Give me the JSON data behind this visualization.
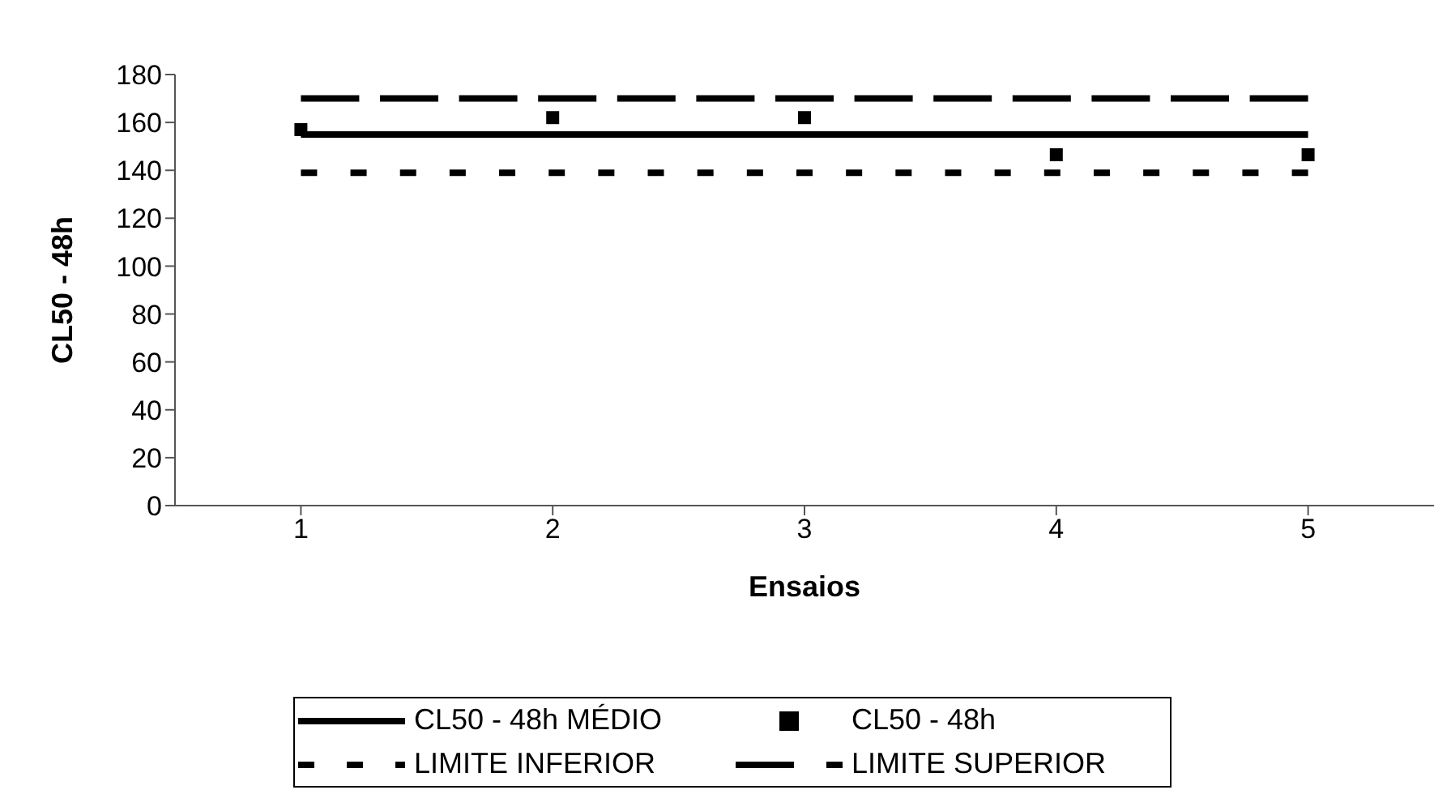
{
  "chart_data": {
    "type": "line",
    "xlabel": "Ensaios",
    "ylabel": "CL50 - 48h",
    "categories": [
      "1",
      "2",
      "3",
      "4",
      "5"
    ],
    "series": [
      {
        "name": "CL50 - 48h MÉDIO",
        "color": "#000000",
        "line_style": "solid",
        "values": [
          155,
          155,
          155,
          155,
          155
        ]
      },
      {
        "name": "CL50 - 48h",
        "type": "scatter",
        "color": "#000000",
        "marker": "square",
        "values": [
          157,
          162,
          162,
          146.5,
          146.5
        ]
      },
      {
        "name": "LIMITE INFERIOR",
        "color": "#000000",
        "line_style": "dotted",
        "values": [
          139,
          139,
          139,
          139,
          139
        ]
      },
      {
        "name": "LIMITE SUPERIOR",
        "color": "#000000",
        "line_style": "dashed",
        "values": [
          170,
          170,
          170,
          170,
          170
        ]
      }
    ],
    "ylim": [
      0,
      180
    ],
    "yticks": [
      0,
      20,
      40,
      60,
      80,
      100,
      120,
      140,
      160,
      180
    ],
    "grid": false,
    "legend": "bottom"
  }
}
